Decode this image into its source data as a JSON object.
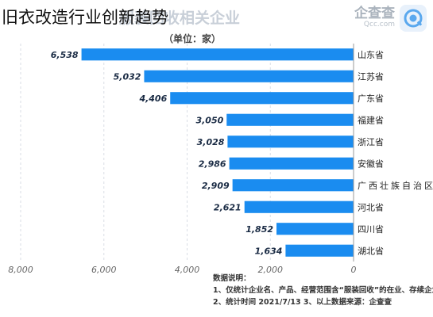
{
  "headline": "旧衣改造行业创新趋势",
  "watermark_title": "服装回收相关企业",
  "brand": {
    "name": "企查查",
    "url": "Qcc.com",
    "logo_icon": "qcc-logo-icon"
  },
  "colors": {
    "bar": "#1a8cf0",
    "grid": "#d9dee5",
    "axis": "#999999"
  },
  "chart_data": {
    "type": "bar",
    "orientation": "horizontal",
    "unit": "（单位：家）",
    "categories": [
      "山东省",
      "江苏省",
      "广东省",
      "福建省",
      "浙江省",
      "安徽省",
      "广西壮族自治区",
      "河北省",
      "四川省",
      "湖北省"
    ],
    "values": [
      6538,
      5032,
      4406,
      3050,
      3028,
      2986,
      2909,
      2621,
      1852,
      1634
    ],
    "value_labels": [
      "6,538",
      "5,032",
      "4,406",
      "3,050",
      "3,028",
      "2,986",
      "2,909",
      "2,621",
      "1,852",
      "1,634"
    ],
    "xlim": [
      0,
      8000
    ],
    "x_reversed": true,
    "xticks": [
      0,
      2000,
      4000,
      6000,
      8000
    ],
    "xtick_labels": [
      "0",
      "2,000",
      "4,000",
      "6,000",
      "8,000"
    ],
    "grid": true,
    "category_axis": "right"
  },
  "notes": {
    "title": "数据说明：",
    "lines": [
      "1、仅统计企业名、产品、经营范围含“服装回收”的在业、存续企业",
      "2、统计时间 2021/7/13        3、以上数据来源：企查查"
    ]
  }
}
